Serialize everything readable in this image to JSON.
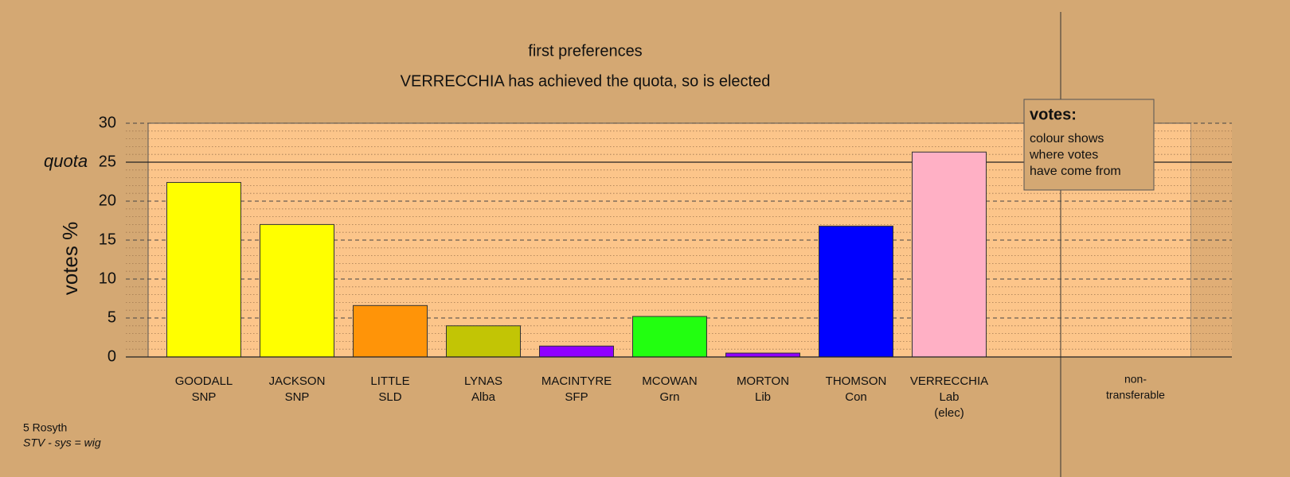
{
  "chart_data": {
    "type": "bar",
    "title": "first preferences",
    "subtitle": "VERRECCHIA has achieved the quota, so is elected",
    "y_label": "votes %",
    "quota": 25,
    "quota_label": "quota",
    "categories": [
      [
        "GOODALL",
        "SNP"
      ],
      [
        "JACKSON",
        "SNP"
      ],
      [
        "LITTLE",
        "SLD"
      ],
      [
        "LYNAS",
        "Alba"
      ],
      [
        "MACINTYRE",
        "SFP"
      ],
      [
        "MCOWAN",
        "Grn"
      ],
      [
        "MORTON",
        "Lib"
      ],
      [
        "THOMSON",
        "Con"
      ],
      [
        "VERRECCHIA",
        "Lab",
        "(elec)"
      ],
      [
        "non-",
        "transferable"
      ]
    ],
    "values": [
      22.4,
      17.0,
      6.6,
      4.0,
      1.4,
      5.2,
      0.5,
      16.8,
      26.3,
      0
    ],
    "colors": [
      "#ffff00",
      "#ffff00",
      "#ff9408",
      "#c2c505",
      "#8f00ff",
      "#22ff10",
      "#8f00ff",
      "#0000ff",
      "#ffb0c5",
      "#cccccc"
    ],
    "ylim": [
      0,
      30
    ],
    "yticks": [
      0,
      5,
      10,
      15,
      20,
      25,
      30
    ],
    "grid": true,
    "legend": {
      "title": "votes:",
      "lines": [
        "colour shows",
        "where votes",
        "have come from"
      ]
    },
    "footer": [
      "5 Rosyth",
      "STV - sys = wig"
    ]
  }
}
